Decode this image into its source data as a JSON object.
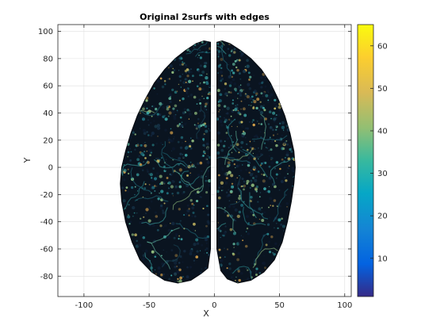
{
  "chart_data": {
    "type": "surface",
    "title": "Original 2surfs with edges",
    "xlabel": "X",
    "ylabel": "Y",
    "xlim": [
      -120,
      105
    ],
    "ylim": [
      -95,
      105
    ],
    "xticks": [
      -100,
      -50,
      0,
      50,
      100
    ],
    "yticks": [
      -80,
      -60,
      -40,
      -20,
      0,
      20,
      40,
      60,
      80,
      100
    ],
    "grid": true,
    "colormap": "parula",
    "colorbar": {
      "range": [
        1,
        65
      ],
      "ticks": [
        10,
        20,
        30,
        40,
        50,
        60
      ]
    },
    "surfaces": [
      {
        "name": "",
        "outline_xy": [
          [
            -3,
            92
          ],
          [
            -8,
            93
          ],
          [
            -14,
            91
          ],
          [
            -22,
            86
          ],
          [
            -30,
            80
          ],
          [
            -38,
            72
          ],
          [
            -46,
            62
          ],
          [
            -53,
            50
          ],
          [
            -59,
            38
          ],
          [
            -64,
            25
          ],
          [
            -68,
            12
          ],
          [
            -71,
            0
          ],
          [
            -72,
            -12
          ],
          [
            -71,
            -25
          ],
          [
            -68,
            -40
          ],
          [
            -63,
            -55
          ],
          [
            -57,
            -68
          ],
          [
            -48,
            -77
          ],
          [
            -38,
            -83
          ],
          [
            -28,
            -85
          ],
          [
            -18,
            -83
          ],
          [
            -10,
            -78
          ],
          [
            -5,
            -74
          ],
          [
            -3,
            -60
          ],
          [
            -3,
            80
          ]
        ]
      },
      {
        "name": "",
        "outline_xy": [
          [
            2,
            92
          ],
          [
            6,
            93
          ],
          [
            12,
            91
          ],
          [
            20,
            86
          ],
          [
            28,
            80
          ],
          [
            36,
            72
          ],
          [
            43,
            62
          ],
          [
            49,
            50
          ],
          [
            54,
            38
          ],
          [
            58,
            25
          ],
          [
            61,
            12
          ],
          [
            62,
            0
          ],
          [
            61,
            -12
          ],
          [
            59,
            -25
          ],
          [
            56,
            -40
          ],
          [
            52,
            -55
          ],
          [
            46,
            -68
          ],
          [
            38,
            -77
          ],
          [
            28,
            -83
          ],
          [
            18,
            -85
          ],
          [
            10,
            -82
          ],
          [
            5,
            -76
          ],
          [
            2,
            -60
          ],
          [
            2,
            80
          ]
        ]
      }
    ]
  }
}
